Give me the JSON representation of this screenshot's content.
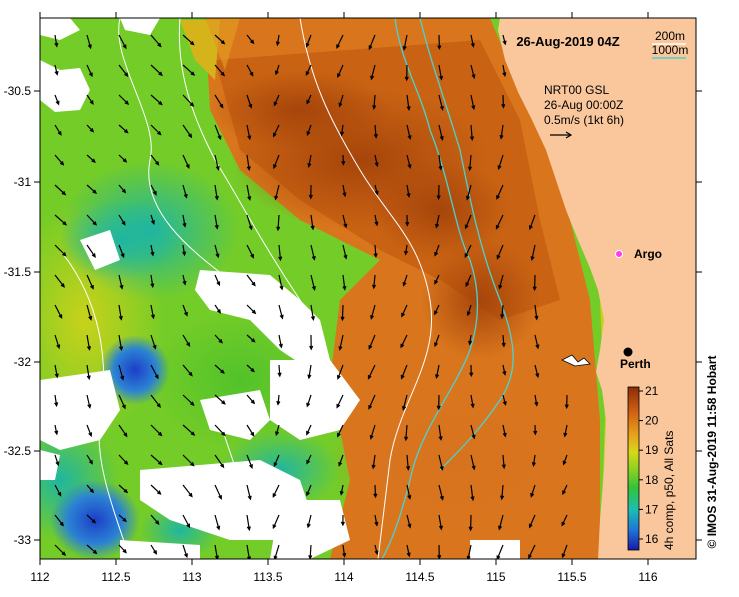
{
  "title": "26-Aug-2019 04Z",
  "depth_legend": {
    "items": [
      {
        "label": "200m",
        "color": "#ffffff"
      },
      {
        "label": "1000m",
        "color": "#49d3cf"
      }
    ]
  },
  "current_info": {
    "line1": "NRT00 GSL",
    "line2": "26-Aug 00:00Z",
    "line3": "0.5m/s (1kt 6h)"
  },
  "markers": {
    "argo": "Argo",
    "perth": "Perth"
  },
  "colorbar": {
    "label": "4h comp, p50, All Sats",
    "ticks": [
      "21",
      "20",
      "19",
      "18",
      "17",
      "16"
    ],
    "range": [
      15.5,
      21
    ]
  },
  "credit": "© IMOS 31-Aug-2019 11:58 Hobart",
  "axes": {
    "x_ticks": [
      "112",
      "112.5",
      "113",
      "113.5",
      "114",
      "114.5",
      "115",
      "115.5",
      "116"
    ],
    "y_ticks": [
      "-30.5",
      "-31",
      "-31.5",
      "-32",
      "-32.5",
      "-33"
    ]
  },
  "colors": {
    "land": "#f9c79b",
    "cloud": "#ffffff",
    "isobath_1000m": "#49d3cf",
    "argo": "#ff3bf0"
  }
}
